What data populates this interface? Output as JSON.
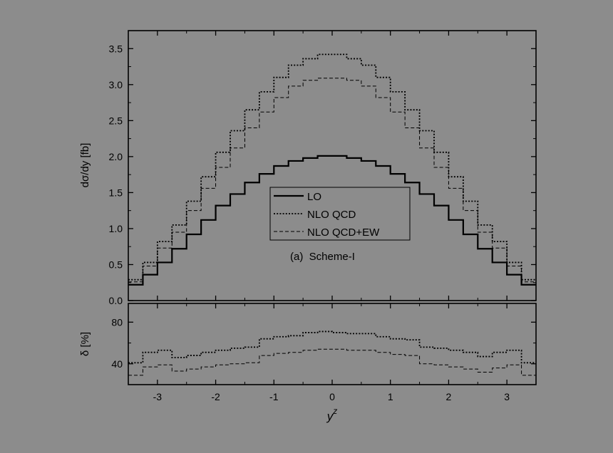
{
  "chart_data": {
    "type": "line",
    "figure_background": "#8c8c8c",
    "panels": [
      {
        "id": "top",
        "ylabel": "dσ/dy [fb]",
        "ylim": [
          0.0,
          3.75
        ],
        "yticks": [
          "0.0",
          "0.5",
          "1.0",
          "1.5",
          "2.0",
          "2.5",
          "3.0",
          "3.5"
        ],
        "ytick_values": [
          0.0,
          0.5,
          1.0,
          1.5,
          2.0,
          2.5,
          3.0,
          3.5
        ],
        "xlim": [
          -3.5,
          3.5
        ],
        "x_edges": [
          -3.5,
          -3.25,
          -3.0,
          -2.75,
          -2.5,
          -2.25,
          -2.0,
          -1.75,
          -1.5,
          -1.25,
          -1.0,
          -0.75,
          -0.5,
          -0.25,
          0.0,
          0.25,
          0.5,
          0.75,
          1.0,
          1.25,
          1.5,
          1.75,
          2.0,
          2.25,
          2.5,
          2.75,
          3.0,
          3.25,
          3.5
        ],
        "series": [
          {
            "name": "LO",
            "style": "solid",
            "values": [
              0.22,
              0.36,
              0.53,
              0.72,
              0.92,
              1.12,
              1.32,
              1.48,
              1.64,
              1.76,
              1.87,
              1.94,
              1.98,
              2.01,
              2.01,
              1.98,
              1.94,
              1.87,
              1.76,
              1.64,
              1.48,
              1.32,
              1.12,
              0.92,
              0.72,
              0.53,
              0.36,
              0.22
            ]
          },
          {
            "name": "NLO QCD",
            "style": "dotted",
            "values": [
              0.29,
              0.53,
              0.82,
              1.05,
              1.38,
              1.72,
              2.06,
              2.36,
              2.65,
              2.9,
              3.1,
              3.27,
              3.36,
              3.42,
              3.42,
              3.36,
              3.27,
              3.1,
              2.9,
              2.65,
              2.36,
              2.06,
              1.72,
              1.38,
              1.05,
              0.82,
              0.53,
              0.29
            ]
          },
          {
            "name": "NLO QCD+EW",
            "style": "dashed",
            "values": [
              0.26,
              0.48,
              0.73,
              0.95,
              1.25,
              1.56,
              1.85,
              2.12,
              2.4,
              2.62,
              2.82,
              2.98,
              3.06,
              3.09,
              3.09,
              3.06,
              2.98,
              2.82,
              2.62,
              2.4,
              2.12,
              1.85,
              1.56,
              1.25,
              0.95,
              0.73,
              0.48,
              0.26
            ]
          }
        ],
        "legend_position": "center",
        "annotation": "(a)  Scheme-I"
      },
      {
        "id": "bottom",
        "ylabel": "δ [%]",
        "ylim": [
          20,
          98
        ],
        "yticks": [
          "40",
          "80"
        ],
        "ytick_values": [
          40,
          80
        ],
        "xlim": [
          -3.5,
          3.5
        ],
        "xlabel": "y",
        "xlabel_superscript": "z",
        "xticks": [
          "-3",
          "-2",
          "-1",
          "0",
          "1",
          "2",
          "3"
        ],
        "xtick_values": [
          -3,
          -2,
          -1,
          0,
          1,
          2,
          3
        ],
        "x_edges": [
          -3.5,
          -3.25,
          -3.0,
          -2.75,
          -2.5,
          -2.25,
          -2.0,
          -1.75,
          -1.5,
          -1.25,
          -1.0,
          -0.75,
          -0.5,
          -0.25,
          0.0,
          0.25,
          0.5,
          0.75,
          1.0,
          1.25,
          1.5,
          1.75,
          2.0,
          2.25,
          2.5,
          2.75,
          3.0,
          3.25,
          3.5
        ],
        "series": [
          {
            "name": "NLO QCD",
            "style": "dotted",
            "values": [
              41,
              51,
              53,
              46,
              48,
              51,
              53,
              55,
              56,
              64,
              66,
              67,
              70,
              71,
              70,
              69,
              69,
              66,
              64,
              63,
              56,
              55,
              53,
              51,
              47,
              51,
              53,
              41
            ]
          },
          {
            "name": "NLO QCD+EW",
            "style": "dashed",
            "values": [
              29,
              37,
              39,
              33,
              35,
              37,
              39,
              40,
              41,
              48,
              50,
              51,
              53,
              54,
              54,
              53,
              53,
              51,
              49,
              48,
              40,
              39,
              37,
              35,
              32,
              36,
              39,
              29
            ]
          }
        ]
      }
    ]
  }
}
